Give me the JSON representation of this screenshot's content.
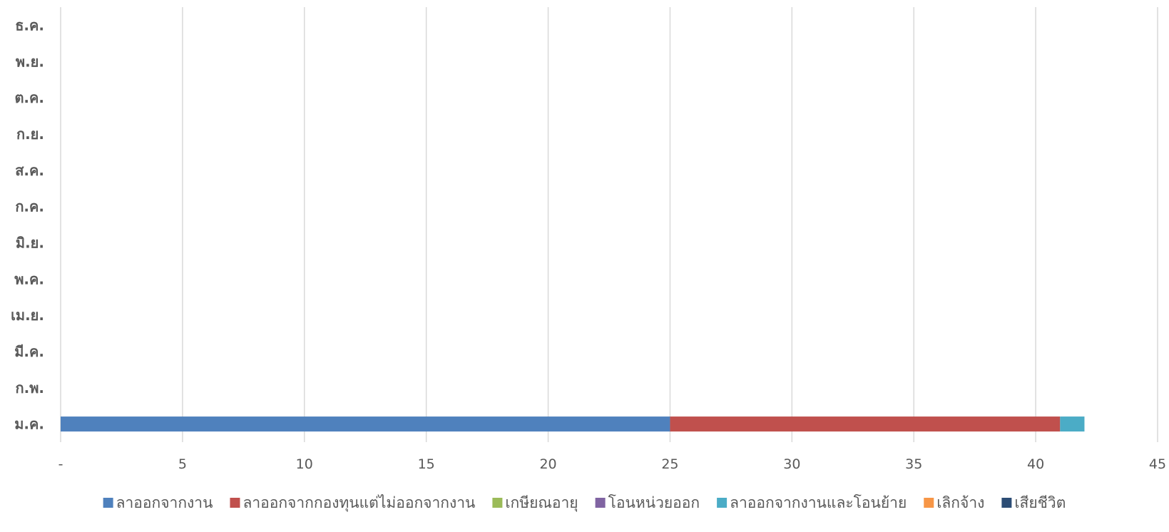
{
  "chart_data": {
    "type": "bar",
    "orientation": "horizontal",
    "stacked": true,
    "title": "",
    "xlabel": "",
    "ylabel": "",
    "categories": [
      "ม.ค.",
      "ก.พ.",
      "มี.ค.",
      "เม.ย.",
      "พ.ค.",
      "มิ.ย.",
      "ก.ค.",
      "ส.ค.",
      "ก.ย.",
      "ต.ค.",
      "พ.ย.",
      "ธ.ค."
    ],
    "xlim": [
      0,
      45
    ],
    "x_ticks": [
      "-",
      "5",
      "10",
      "15",
      "20",
      "25",
      "30",
      "35",
      "40",
      "45"
    ],
    "grid": "vertical",
    "legend_position": "bottom",
    "series": [
      {
        "name": "ลาออกจากงาน",
        "color": "#4f81bd",
        "values": [
          25,
          0,
          0,
          0,
          0,
          0,
          0,
          0,
          0,
          0,
          0,
          0
        ]
      },
      {
        "name": "ลาออกจากกองทุนแต่ไม่ออกจากงาน",
        "color": "#c0504d",
        "values": [
          16,
          0,
          0,
          0,
          0,
          0,
          0,
          0,
          0,
          0,
          0,
          0
        ]
      },
      {
        "name": "เกษียณอายุ",
        "color": "#9bbb59",
        "values": [
          0,
          0,
          0,
          0,
          0,
          0,
          0,
          0,
          0,
          0,
          0,
          0
        ]
      },
      {
        "name": "โอนหน่วยออก",
        "color": "#8064a2",
        "values": [
          0,
          0,
          0,
          0,
          0,
          0,
          0,
          0,
          0,
          0,
          0,
          0
        ]
      },
      {
        "name": "ลาออกจากงานและโอนย้าย",
        "color": "#4bacc6",
        "values": [
          1,
          0,
          0,
          0,
          0,
          0,
          0,
          0,
          0,
          0,
          0,
          0
        ]
      },
      {
        "name": "เลิกจ้าง",
        "color": "#f79646",
        "values": [
          0,
          0,
          0,
          0,
          0,
          0,
          0,
          0,
          0,
          0,
          0,
          0
        ]
      },
      {
        "name": "เสียชีวิต",
        "color": "#2c4d75",
        "values": [
          0,
          0,
          0,
          0,
          0,
          0,
          0,
          0,
          0,
          0,
          0,
          0
        ]
      }
    ]
  }
}
